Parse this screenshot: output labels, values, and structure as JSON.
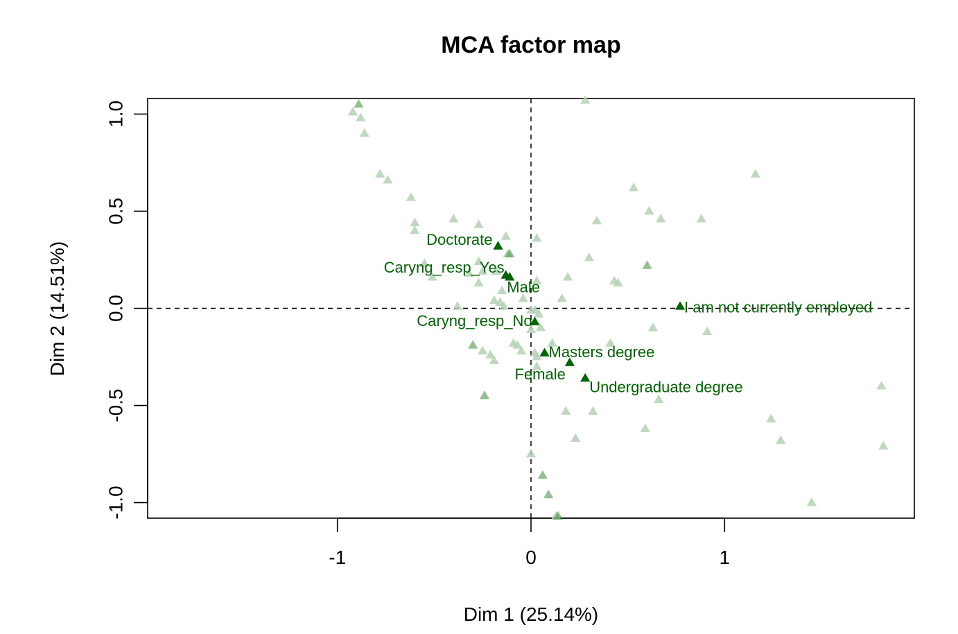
{
  "chart_data": {
    "type": "scatter",
    "title": "MCA factor map",
    "xlabel": "Dim 1 (25.14%)",
    "ylabel": "Dim 2 (14.51%)",
    "xlim": [
      -1.98,
      1.98
    ],
    "ylim": [
      -1.08,
      1.08
    ],
    "x_ticks": [
      -1,
      0,
      1
    ],
    "y_ticks": [
      -1.0,
      -0.5,
      0.0,
      0.5,
      1.0
    ],
    "x_tick_labels": [
      "-1",
      "0",
      "1"
    ],
    "y_tick_labels": [
      "-1.0",
      "-0.5",
      "0.0",
      "0.5",
      "1.0"
    ],
    "reference_lines": {
      "x": 0,
      "y": 0,
      "style": "dashed"
    },
    "grid": false,
    "colors": {
      "active": "#006400",
      "medium": "#3d8a3d",
      "faded": "#b5d0b5"
    },
    "labeled_points": [
      {
        "label": "Doctorate",
        "x": -0.17,
        "y": 0.32
      },
      {
        "label": "Caryng_resp_Yes",
        "x": -0.13,
        "y": 0.17
      },
      {
        "label": "Male",
        "x": -0.11,
        "y": 0.16
      },
      {
        "label": "Caryng_resp_No",
        "x": 0.02,
        "y": -0.07
      },
      {
        "label": "I am not currently employed",
        "x": 0.77,
        "y": 0.01
      },
      {
        "label": "Masters degree",
        "x": 0.07,
        "y": -0.23
      },
      {
        "label": "Female",
        "x": 0.2,
        "y": -0.28
      },
      {
        "label": "Undergraduate degree",
        "x": 0.28,
        "y": -0.36
      }
    ],
    "unlabeled_points": [
      {
        "x": -0.24,
        "y": -0.45,
        "shade": "medium"
      },
      {
        "x": -0.89,
        "y": 1.05,
        "shade": "medium"
      },
      {
        "x": -0.92,
        "y": 1.01,
        "shade": "faded"
      },
      {
        "x": -0.88,
        "y": 0.98,
        "shade": "faded"
      },
      {
        "x": -0.86,
        "y": 0.9,
        "shade": "faded"
      },
      {
        "x": -0.78,
        "y": 0.69,
        "shade": "faded"
      },
      {
        "x": -0.74,
        "y": 0.66,
        "shade": "faded"
      },
      {
        "x": -0.62,
        "y": 0.57,
        "shade": "faded"
      },
      {
        "x": -0.6,
        "y": 0.44,
        "shade": "faded"
      },
      {
        "x": -0.6,
        "y": 0.4,
        "shade": "faded"
      },
      {
        "x": -0.4,
        "y": 0.46,
        "shade": "faded"
      },
      {
        "x": -0.27,
        "y": 0.43,
        "shade": "faded"
      },
      {
        "x": -0.13,
        "y": 0.37,
        "shade": "faded"
      },
      {
        "x": -0.12,
        "y": 0.28,
        "shade": "faded"
      },
      {
        "x": -0.11,
        "y": 0.28,
        "shade": "medium"
      },
      {
        "x": 0.03,
        "y": 0.36,
        "shade": "faded"
      },
      {
        "x": 0.28,
        "y": 1.07,
        "shade": "faded"
      },
      {
        "x": 0.53,
        "y": 0.62,
        "shade": "faded"
      },
      {
        "x": 0.61,
        "y": 0.5,
        "shade": "faded"
      },
      {
        "x": 0.67,
        "y": 0.46,
        "shade": "faded"
      },
      {
        "x": 0.34,
        "y": 0.45,
        "shade": "faded"
      },
      {
        "x": 0.88,
        "y": 0.46,
        "shade": "faded"
      },
      {
        "x": 1.16,
        "y": 0.69,
        "shade": "faded"
      },
      {
        "x": 0.3,
        "y": 0.26,
        "shade": "faded"
      },
      {
        "x": 0.6,
        "y": 0.22,
        "shade": "medium"
      },
      {
        "x": 0.19,
        "y": 0.16,
        "shade": "faded"
      },
      {
        "x": 0.43,
        "y": 0.14,
        "shade": "faded"
      },
      {
        "x": 0.45,
        "y": 0.13,
        "shade": "faded"
      },
      {
        "x": -0.55,
        "y": 0.23,
        "shade": "faded"
      },
      {
        "x": -0.51,
        "y": 0.16,
        "shade": "faded"
      },
      {
        "x": -0.32,
        "y": 0.18,
        "shade": "faded"
      },
      {
        "x": -0.27,
        "y": 0.24,
        "shade": "faded"
      },
      {
        "x": -0.25,
        "y": 0.19,
        "shade": "faded"
      },
      {
        "x": -0.18,
        "y": 0.19,
        "shade": "faded"
      },
      {
        "x": -0.27,
        "y": 0.13,
        "shade": "faded"
      },
      {
        "x": -0.15,
        "y": 0.09,
        "shade": "faded"
      },
      {
        "x": 0.03,
        "y": 0.14,
        "shade": "faded"
      },
      {
        "x": -0.19,
        "y": 0.04,
        "shade": "faded"
      },
      {
        "x": -0.16,
        "y": 0.03,
        "shade": "faded"
      },
      {
        "x": -0.38,
        "y": 0.01,
        "shade": "faded"
      },
      {
        "x": -0.14,
        "y": 0.01,
        "shade": "faded"
      },
      {
        "x": -0.04,
        "y": 0.05,
        "shade": "faded"
      },
      {
        "x": 0.0,
        "y": -0.01,
        "shade": "faded"
      },
      {
        "x": 0.02,
        "y": -0.01,
        "shade": "faded"
      },
      {
        "x": 0.04,
        "y": -0.03,
        "shade": "faded"
      },
      {
        "x": 0.16,
        "y": 0.05,
        "shade": "faded"
      },
      {
        "x": 0.05,
        "y": -0.1,
        "shade": "faded"
      },
      {
        "x": 0.0,
        "y": -0.11,
        "shade": "faded"
      },
      {
        "x": 0.63,
        "y": -0.1,
        "shade": "faded"
      },
      {
        "x": 0.91,
        "y": -0.12,
        "shade": "faded"
      },
      {
        "x": -0.3,
        "y": -0.19,
        "shade": "medium"
      },
      {
        "x": -0.09,
        "y": -0.18,
        "shade": "faded"
      },
      {
        "x": -0.07,
        "y": -0.19,
        "shade": "faded"
      },
      {
        "x": -0.05,
        "y": -0.22,
        "shade": "faded"
      },
      {
        "x": -0.25,
        "y": -0.22,
        "shade": "faded"
      },
      {
        "x": -0.21,
        "y": -0.24,
        "shade": "faded"
      },
      {
        "x": -0.19,
        "y": -0.27,
        "shade": "faded"
      },
      {
        "x": 0.02,
        "y": -0.23,
        "shade": "faded"
      },
      {
        "x": 0.03,
        "y": -0.25,
        "shade": "faded"
      },
      {
        "x": 0.11,
        "y": -0.18,
        "shade": "faded"
      },
      {
        "x": 0.41,
        "y": -0.18,
        "shade": "faded"
      },
      {
        "x": 0.03,
        "y": -0.3,
        "shade": "faded"
      },
      {
        "x": 0.66,
        "y": -0.47,
        "shade": "faded"
      },
      {
        "x": 0.18,
        "y": -0.53,
        "shade": "faded"
      },
      {
        "x": 0.32,
        "y": -0.53,
        "shade": "faded"
      },
      {
        "x": 0.59,
        "y": -0.62,
        "shade": "faded"
      },
      {
        "x": 0.23,
        "y": -0.67,
        "shade": "faded"
      },
      {
        "x": 1.24,
        "y": -0.57,
        "shade": "faded"
      },
      {
        "x": 1.29,
        "y": -0.68,
        "shade": "faded"
      },
      {
        "x": 1.81,
        "y": -0.4,
        "shade": "faded"
      },
      {
        "x": 1.82,
        "y": -0.71,
        "shade": "faded"
      },
      {
        "x": 1.45,
        "y": -1.0,
        "shade": "faded"
      },
      {
        "x": 0.0,
        "y": -0.75,
        "shade": "faded"
      },
      {
        "x": 0.06,
        "y": -0.86,
        "shade": "medium"
      },
      {
        "x": 0.09,
        "y": -0.96,
        "shade": "medium"
      },
      {
        "x": 0.13,
        "y": -1.07,
        "shade": "faded"
      },
      {
        "x": 0.14,
        "y": -1.07,
        "shade": "medium"
      }
    ]
  }
}
